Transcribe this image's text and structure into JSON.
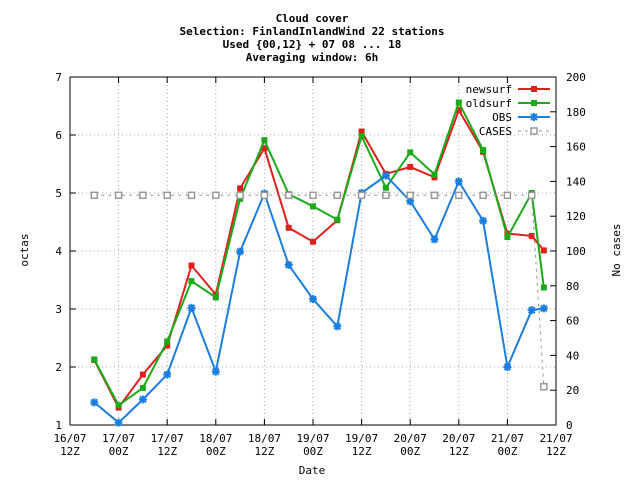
{
  "chart_data": {
    "type": "line",
    "title": "Cloud cover",
    "subtitle_lines": [
      "Selection: FinlandInlandWind     22 stations",
      "Used {00,12} + 07 08 ... 18",
      "Averaging window:  6h"
    ],
    "xlabel": "Date",
    "ylabel": "octas",
    "y2label": "No cases",
    "ylim": [
      1,
      7
    ],
    "y2lim": [
      0,
      200
    ],
    "yticks": [
      "1",
      "2",
      "3",
      "4",
      "5",
      "6",
      "7"
    ],
    "y2ticks": [
      "0",
      "20",
      "40",
      "60",
      "80",
      "100",
      "120",
      "140",
      "160",
      "180",
      "200"
    ],
    "x_ticks": [
      {
        "date": "16/07",
        "hour": "12Z"
      },
      {
        "date": "17/07",
        "hour": "00Z"
      },
      {
        "date": "17/07",
        "hour": "12Z"
      },
      {
        "date": "18/07",
        "hour": "00Z"
      },
      {
        "date": "18/07",
        "hour": "12Z"
      },
      {
        "date": "19/07",
        "hour": "00Z"
      },
      {
        "date": "19/07",
        "hour": "12Z"
      },
      {
        "date": "20/07",
        "hour": "00Z"
      },
      {
        "date": "20/07",
        "hour": "12Z"
      },
      {
        "date": "21/07",
        "hour": "00Z"
      },
      {
        "date": "21/07",
        "hour": "12Z"
      }
    ],
    "x_hours": [
      18,
      24,
      30,
      36,
      42,
      48,
      54,
      60,
      66,
      72,
      78,
      84,
      90,
      96,
      102,
      108,
      114,
      120,
      126,
      132,
      138,
      144,
      150,
      156,
      162,
      168,
      174,
      178
    ],
    "x_hours_note_axis_start": "16/07 12Z",
    "grid": true,
    "legend_position": "top-right",
    "series": [
      {
        "name": "newsurf",
        "axis": "left",
        "color": "#e0201c",
        "marker": "square",
        "values": [
          2.12,
          1.3,
          1.87,
          2.37,
          3.75,
          3.25,
          5.08,
          5.77,
          4.4,
          4.16,
          4.53,
          6.06,
          5.33,
          5.45,
          5.27,
          6.43,
          5.71,
          4.3,
          4.26,
          4.01
        ],
        "x_hours_index": [
          0,
          1,
          2,
          3,
          4,
          5,
          6,
          7,
          8,
          9,
          10,
          11,
          12,
          13,
          14,
          15,
          16,
          17,
          18,
          19
        ]
      },
      {
        "name": "oldsurf",
        "axis": "left",
        "color": "#1aaa1a",
        "marker": "square",
        "values": [
          2.13,
          1.34,
          1.64,
          2.44,
          3.48,
          3.2,
          4.9,
          5.91,
          4.98,
          4.77,
          4.54,
          5.98,
          5.09,
          5.7,
          5.32,
          6.56,
          5.74,
          4.24,
          5.0,
          3.37
        ],
        "x_hours_index": [
          0,
          1,
          2,
          3,
          4,
          5,
          6,
          7,
          8,
          9,
          10,
          11,
          12,
          13,
          14,
          15,
          16,
          17,
          18,
          19
        ]
      },
      {
        "name": "OBS",
        "axis": "left",
        "color": "#1a7ee0",
        "marker": "asterisk",
        "values": [
          1.39,
          1.04,
          1.44,
          1.87,
          3.02,
          1.92,
          3.99,
          4.99,
          3.76,
          3.17,
          2.7,
          5.0,
          5.3,
          4.86,
          4.2,
          5.2,
          4.52,
          2.0,
          2.98,
          3.01
        ],
        "x_hours_index": [
          0,
          1,
          2,
          3,
          4,
          5,
          6,
          7,
          8,
          9,
          10,
          11,
          12,
          13,
          14,
          15,
          16,
          17,
          18,
          19
        ]
      },
      {
        "name": "CASES",
        "axis": "right",
        "color": "#999999",
        "marker": "open-square",
        "dashed": true,
        "values": [
          132,
          132,
          132,
          132,
          132,
          132,
          132,
          132,
          132,
          132,
          132,
          132,
          132,
          132,
          132,
          132,
          132,
          132,
          132,
          22
        ],
        "x_hours_index": [
          0,
          1,
          2,
          3,
          4,
          5,
          6,
          7,
          8,
          9,
          10,
          11,
          12,
          13,
          14,
          15,
          16,
          17,
          18,
          19
        ]
      }
    ],
    "x_hours_from_start": [
      6,
      12,
      18,
      24,
      30,
      36,
      42,
      48,
      54,
      60,
      66,
      72,
      78,
      84,
      90,
      96,
      102,
      108,
      114,
      117
    ]
  }
}
